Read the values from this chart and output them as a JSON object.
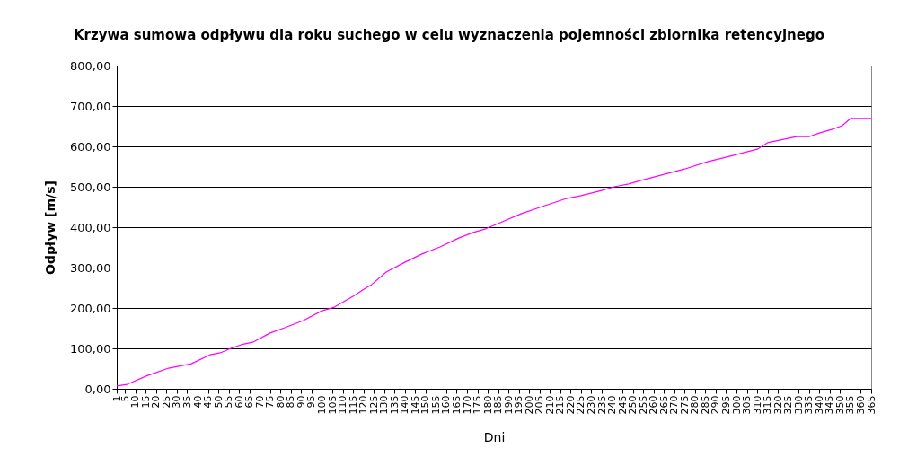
{
  "chart_data": {
    "type": "line",
    "title": "Krzywa sumowa odpływu dla roku suchego w celu wyznaczenia pojemności zbiornika retencyjnego",
    "xlabel": "Dni",
    "ylabel": "Odpływ [m/s]",
    "x": [
      1,
      6,
      16,
      26,
      37,
      46,
      51,
      56,
      61,
      67,
      75,
      82,
      91,
      100,
      106,
      115,
      121,
      124,
      131,
      140,
      148,
      157,
      166,
      173,
      179,
      186,
      196,
      205,
      218,
      225,
      235,
      241,
      248,
      254,
      275,
      286,
      297,
      310,
      315,
      329,
      335,
      340,
      346,
      351,
      355,
      365
    ],
    "series": [
      {
        "color": "#ff00ff",
        "values": [
          7,
          11,
          33,
          51,
          62,
          84,
          89,
          100,
          109,
          116,
          138,
          151,
          169,
          193,
          202,
          229,
          249,
          258,
          289,
          313,
          333,
          351,
          373,
          387,
          396,
          411,
          433,
          449,
          471,
          478,
          491,
          500,
          507,
          516,
          544,
          562,
          576,
          593,
          609,
          624,
          624,
          633,
          642,
          651,
          669,
          669
        ]
      }
    ],
    "xlim": [
      1,
      365
    ],
    "xticks": [
      1,
      5,
      10,
      15,
      20,
      25,
      30,
      35,
      40,
      45,
      50,
      55,
      60,
      65,
      70,
      75,
      80,
      85,
      90,
      95,
      100,
      105,
      110,
      115,
      120,
      125,
      130,
      135,
      140,
      145,
      150,
      155,
      160,
      165,
      170,
      175,
      180,
      185,
      190,
      195,
      200,
      205,
      210,
      215,
      220,
      225,
      230,
      235,
      240,
      245,
      250,
      255,
      260,
      265,
      270,
      275,
      280,
      285,
      290,
      295,
      300,
      305,
      310,
      315,
      320,
      325,
      330,
      335,
      340,
      345,
      350,
      355,
      360,
      365
    ],
    "ylim": [
      0,
      800
    ],
    "yticks": [
      {
        "value": 0,
        "label": "0,00"
      },
      {
        "value": 100,
        "label": "100,00"
      },
      {
        "value": 200,
        "label": "200,00"
      },
      {
        "value": 300,
        "label": "300,00"
      },
      {
        "value": 400,
        "label": "400,00"
      },
      {
        "value": 500,
        "label": "500,00"
      },
      {
        "value": 600,
        "label": "600,00"
      },
      {
        "value": 700,
        "label": "700,00"
      },
      {
        "value": 800,
        "label": "800,00"
      }
    ],
    "grid": "y",
    "marker": "none",
    "line_style": "solid"
  }
}
